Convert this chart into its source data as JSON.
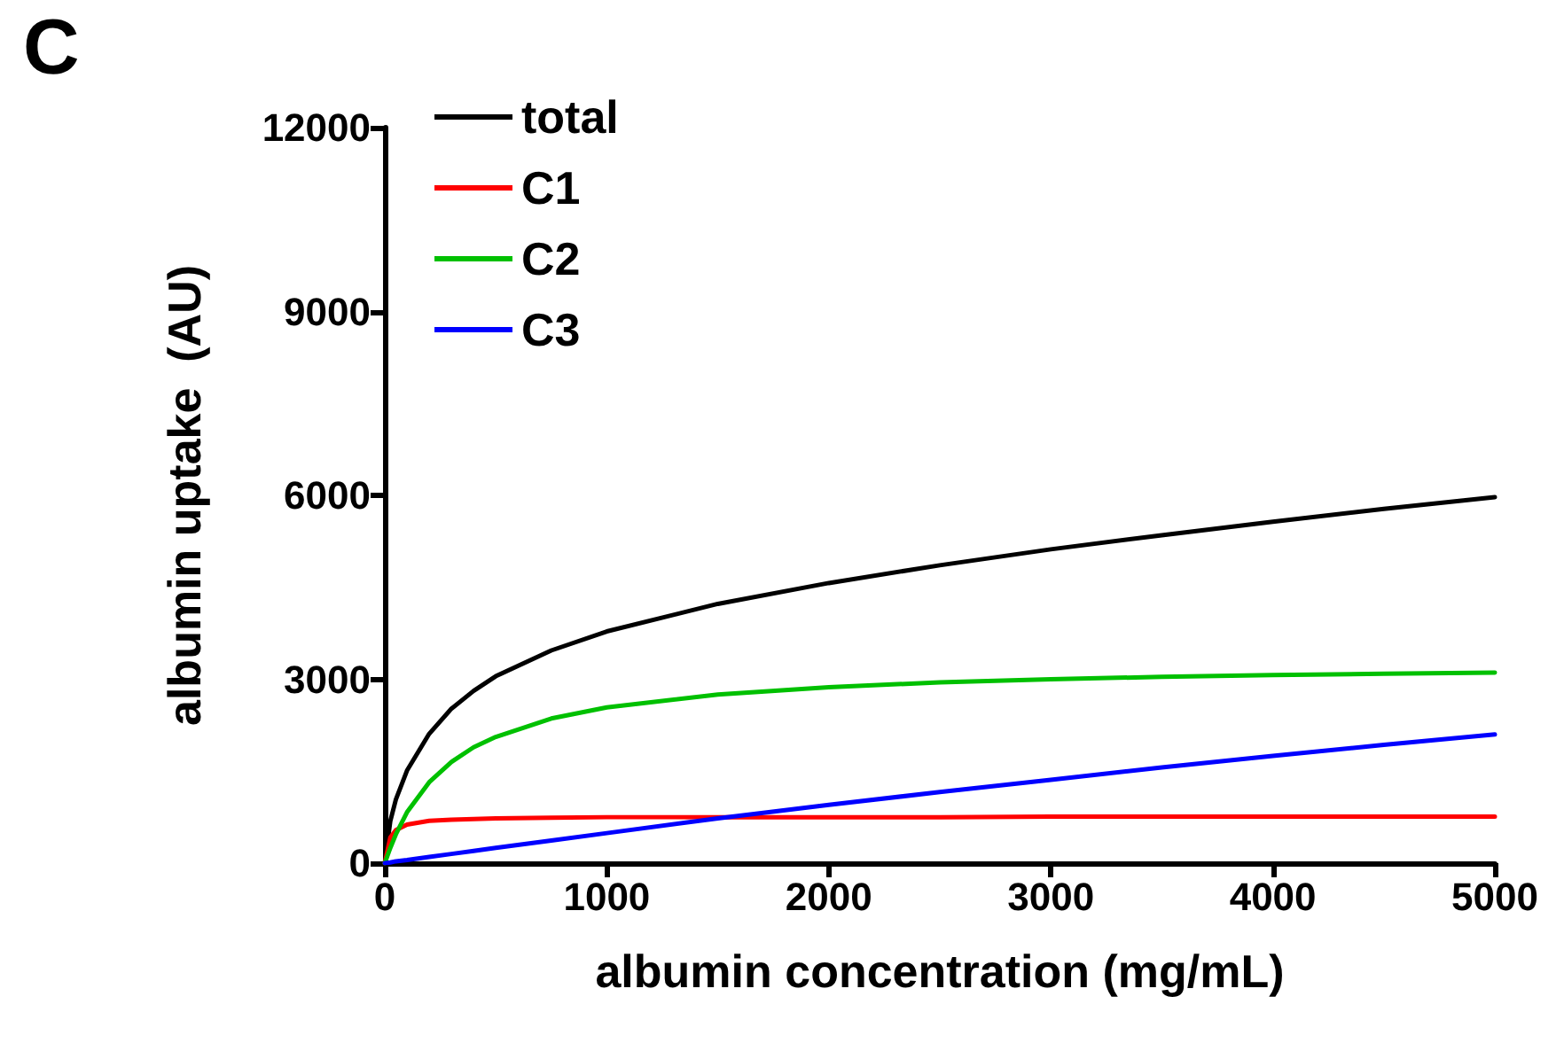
{
  "chart_data": {
    "type": "line",
    "title": "C",
    "xlabel": "albumin concentration (mg/mL)",
    "ylabel": "albumin uptake  (AU)",
    "x": [
      0,
      25,
      50,
      100,
      200,
      300,
      400,
      500,
      750,
      1000,
      1500,
      2000,
      2500,
      3000,
      3500,
      4000,
      4500,
      5000
    ],
    "series": [
      {
        "name": "total",
        "color": "#000000",
        "values": [
          0,
          690,
          1040,
          1510,
          2110,
          2520,
          2810,
          3050,
          3470,
          3780,
          4230,
          4570,
          4860,
          5120,
          5350,
          5570,
          5780,
          5970
        ]
      },
      {
        "name": "C1",
        "color": "#ff0000",
        "values": [
          0,
          420,
          540,
          630,
          690,
          710,
          720,
          730,
          740,
          750,
          750,
          750,
          750,
          760,
          760,
          760,
          760,
          760
        ]
      },
      {
        "name": "C2",
        "color": "#00c000",
        "values": [
          0,
          250,
          470,
          830,
          1320,
          1650,
          1890,
          2060,
          2360,
          2540,
          2750,
          2870,
          2950,
          3000,
          3040,
          3070,
          3090,
          3110
        ]
      },
      {
        "name": "C3",
        "color": "#0000ff",
        "values": [
          0,
          10,
          30,
          50,
          100,
          150,
          200,
          250,
          370,
          490,
          730,
          950,
          1160,
          1360,
          1560,
          1750,
          1930,
          2100
        ]
      }
    ],
    "xlim": [
      0,
      5000
    ],
    "xticks": [
      0,
      1000,
      2000,
      3000,
      4000,
      5000
    ],
    "ylim": [
      0,
      12000
    ],
    "yticks": [
      0,
      3000,
      6000,
      9000,
      12000
    ],
    "grid": false,
    "legend": "top left",
    "marker": "none",
    "line_style": "solid"
  }
}
